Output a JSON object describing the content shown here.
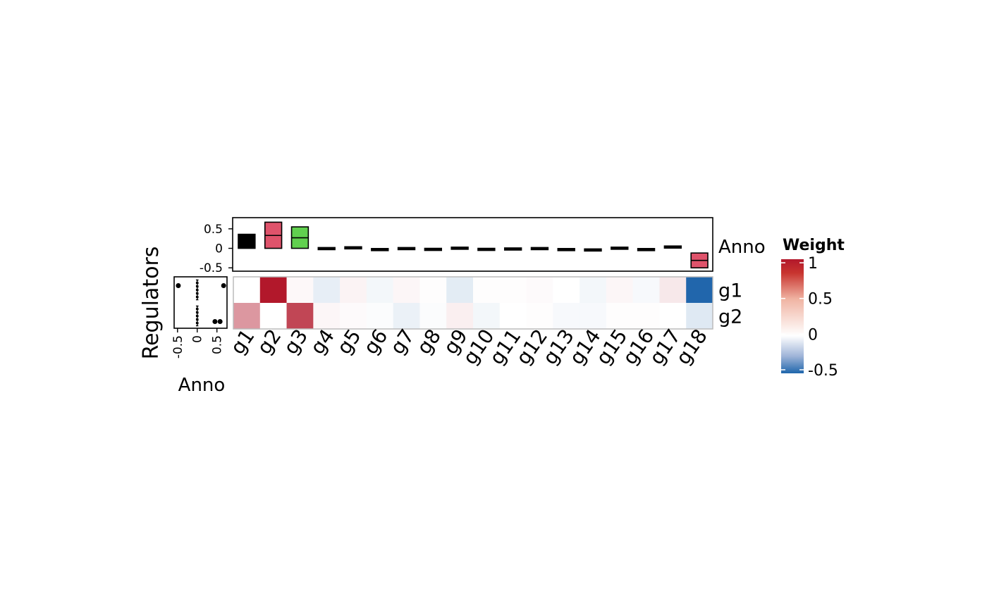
{
  "chart_data": {
    "type": "heatmap",
    "columns": [
      "g1",
      "g2",
      "g3",
      "g4",
      "g5",
      "g6",
      "g7",
      "g8",
      "g9",
      "g10",
      "g11",
      "g12",
      "g13",
      "g14",
      "g15",
      "g16",
      "g17",
      "g18"
    ],
    "rows": [
      "g1",
      "g2"
    ],
    "y_title": "Regulators",
    "values": [
      [
        0.0,
        1.0,
        0.03,
        -0.06,
        0.05,
        -0.03,
        0.04,
        0.01,
        -0.07,
        0.01,
        0.01,
        0.02,
        0.0,
        -0.03,
        0.04,
        -0.02,
        0.1,
        -0.55
      ],
      [
        0.45,
        0.0,
        0.8,
        0.04,
        0.02,
        -0.01,
        -0.05,
        -0.01,
        0.07,
        -0.03,
        0.0,
        0.01,
        -0.02,
        -0.02,
        0.01,
        0.01,
        0.0,
        -0.08
      ]
    ],
    "top_annotation": {
      "label": "Anno",
      "ylim": [
        -0.55,
        0.75
      ],
      "ticks": [
        0.5,
        0,
        -0.5
      ],
      "tick_labels": [
        "0.5",
        "0",
        "-0.5"
      ],
      "boxes": [
        {
          "col": "g1",
          "low": 0.0,
          "mid": 0.18,
          "high": 0.36,
          "fill": "#000000"
        },
        {
          "col": "g2",
          "low": 0.0,
          "mid": 0.33,
          "high": 0.67,
          "fill": "#DF536B"
        },
        {
          "col": "g3",
          "low": 0.0,
          "mid": 0.27,
          "high": 0.55,
          "fill": "#61D04F"
        },
        {
          "col": "g4",
          "low": -0.01,
          "mid": 0.0,
          "high": 0.02,
          "fill": "#000000"
        },
        {
          "col": "g5",
          "low": 0.03,
          "mid": 0.035,
          "high": 0.04,
          "fill": "#000000"
        },
        {
          "col": "g6",
          "low": -0.015,
          "mid": -0.01,
          "high": -0.005,
          "fill": "#000000"
        },
        {
          "col": "g7",
          "low": 0.0,
          "mid": 0.01,
          "high": 0.02,
          "fill": "#000000"
        },
        {
          "col": "g8",
          "low": 0.0,
          "mid": 0.0,
          "high": 0.0,
          "fill": "#000000"
        },
        {
          "col": "g9",
          "low": -0.01,
          "mid": 0.01,
          "high": 0.03,
          "fill": "#000000"
        },
        {
          "col": "g10",
          "low": -0.01,
          "mid": -0.005,
          "high": 0.0,
          "fill": "#000000"
        },
        {
          "col": "g11",
          "low": 0.0,
          "mid": 0.005,
          "high": 0.01,
          "fill": "#000000"
        },
        {
          "col": "g12",
          "low": 0.01,
          "mid": 0.015,
          "high": 0.02,
          "fill": "#000000"
        },
        {
          "col": "g13",
          "low": -0.015,
          "mid": -0.01,
          "high": -0.005,
          "fill": "#000000"
        },
        {
          "col": "g14",
          "low": -0.025,
          "mid": -0.02,
          "high": -0.015,
          "fill": "#000000"
        },
        {
          "col": "g15",
          "low": 0.02,
          "mid": 0.025,
          "high": 0.03,
          "fill": "#000000"
        },
        {
          "col": "g16",
          "low": -0.015,
          "mid": -0.01,
          "high": -0.005,
          "fill": "#000000"
        },
        {
          "col": "g17",
          "low": 0.04,
          "mid": 0.05,
          "high": 0.06,
          "fill": "#000000"
        },
        {
          "col": "g18",
          "low": -0.5,
          "mid": -0.31,
          "high": -0.12,
          "fill": "#DF536B"
        }
      ]
    },
    "left_annotation": {
      "label": "Anno",
      "xlim": [
        -0.55,
        0.72
      ],
      "ticks": [
        -0.5,
        0,
        0.5
      ],
      "tick_labels": [
        "-0.5",
        "0",
        "0.5"
      ],
      "rows": [
        {
          "row": "g1",
          "box": [
            -0.02,
            0.0,
            0.02
          ],
          "outliers": [
            -0.48,
            0.67
          ]
        },
        {
          "row": "g2",
          "box": [
            -0.02,
            0.0,
            0.02
          ],
          "outliers": [
            0.45,
            0.58
          ]
        }
      ]
    },
    "legend": {
      "title": "Weight",
      "placement": "right",
      "breaks": [
        1,
        0.5,
        0,
        -0.5
      ],
      "break_labels": [
        "1",
        "0.5",
        "0",
        "-0.5"
      ],
      "range": [
        -0.55,
        1.05
      ],
      "colors": {
        "high": "#B2182B",
        "mid": "#FFFFFF",
        "low": "#2166AC"
      }
    }
  }
}
